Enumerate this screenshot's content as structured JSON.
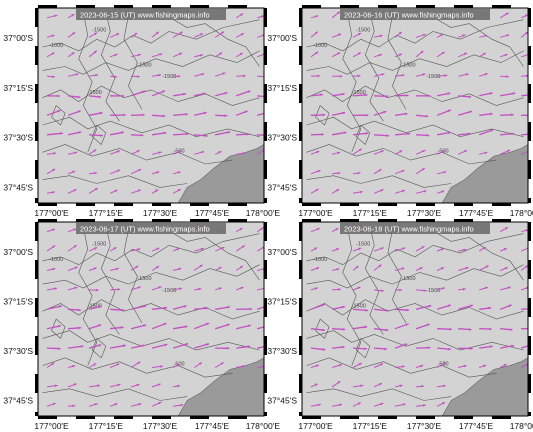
{
  "panels": [
    {
      "stamp": "2023-06-15 (UT)   www.fishingmaps.info"
    },
    {
      "stamp": "2023-06-16 (UT)   www.fishingmaps.info"
    },
    {
      "stamp": "2023-06-17 (UT)   www.fishingmaps.info"
    },
    {
      "stamp": "2023-06-18 (UT)   www.fishingmaps.info"
    }
  ],
  "axes": {
    "lat_labels": [
      "37°00'S",
      "37°15'S",
      "37°30'S",
      "37°45'S"
    ],
    "lon_labels": [
      "177°00'E",
      "177°15'E",
      "177°30'E",
      "177°45'E",
      "178°00'E"
    ]
  },
  "contour_labels": [
    "-1000",
    "-1500",
    "-1500",
    "-500",
    "-1500",
    "-1500"
  ],
  "colors": {
    "sea": "#d3d3d3",
    "land": "#9a9a9a",
    "arrow": "#c44fc4",
    "contour": "#555555",
    "frame": "#000000",
    "stamp_bg": "#707070"
  }
}
